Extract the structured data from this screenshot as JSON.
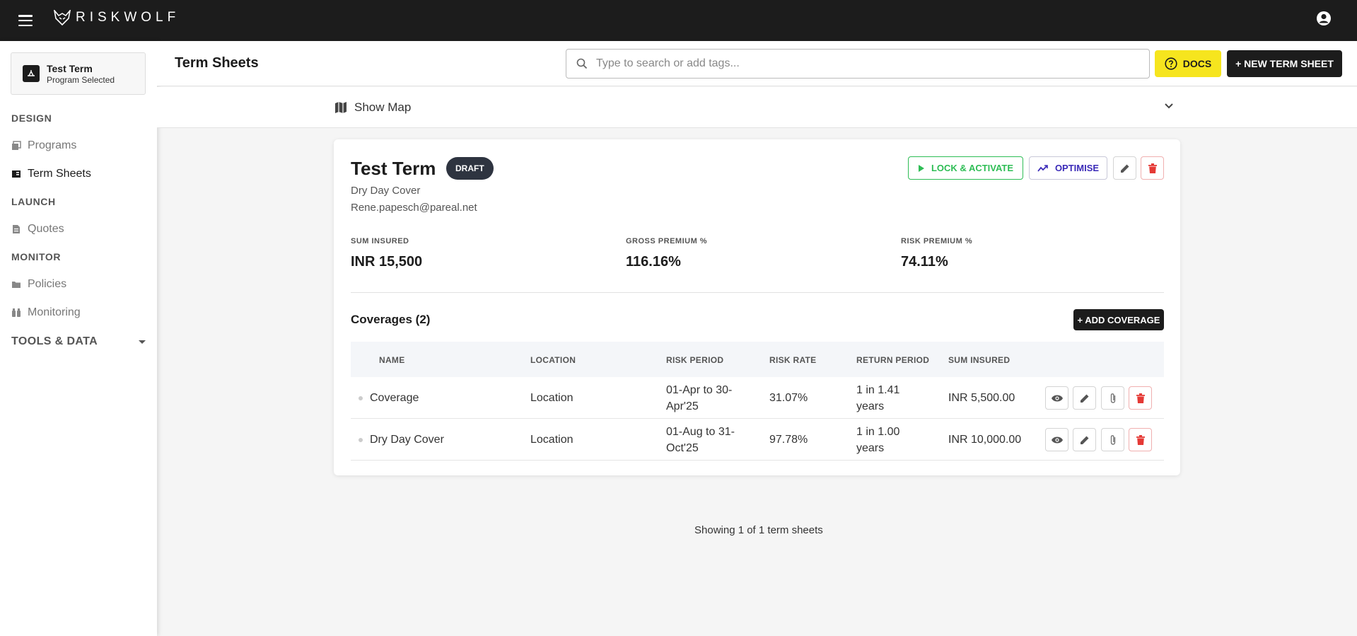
{
  "app": {
    "brand": "RISKWOLF"
  },
  "sidebar": {
    "program": {
      "title": "Test Term",
      "subtitle": "Program Selected"
    },
    "sections": [
      {
        "label": "DESIGN"
      },
      {
        "label": "LAUNCH"
      },
      {
        "label": "MONITOR"
      }
    ],
    "items": [
      {
        "label": "Programs",
        "icon": "programs-icon"
      },
      {
        "label": "Term Sheets",
        "icon": "term-sheets-icon",
        "active": true
      },
      {
        "label": "Quotes",
        "icon": "document-icon"
      },
      {
        "label": "Policies",
        "icon": "folder-icon"
      },
      {
        "label": "Monitoring",
        "icon": "binoculars-icon"
      }
    ],
    "tools": "TOOLS & DATA"
  },
  "header": {
    "title": "Term Sheets",
    "search_placeholder": "Type to search or add tags...",
    "docs_label": "DOCS",
    "new_label": "+ NEW TERM SHEET"
  },
  "map": {
    "label": "Show Map"
  },
  "term_sheet": {
    "title": "Test Term",
    "status": "DRAFT",
    "subtitle": "Dry Day Cover",
    "email": "Rene.papesch@pareal.net",
    "lock_label": "LOCK & ACTIVATE",
    "optimise_label": "OPTIMISE",
    "stats": [
      {
        "label": "SUM INSURED",
        "value": "INR 15,500"
      },
      {
        "label": "GROSS PREMIUM %",
        "value": "116.16%"
      },
      {
        "label": "RISK PREMIUM %",
        "value": "74.11%"
      }
    ],
    "coverages_title": "Coverages (2)",
    "add_coverage_label": "+ ADD COVERAGE",
    "columns": [
      "NAME",
      "LOCATION",
      "RISK PERIOD",
      "RISK RATE",
      "RETURN PERIOD",
      "SUM INSURED"
    ],
    "rows": [
      {
        "name": "Coverage",
        "location": "Location",
        "risk_period_1": "01-Apr to 30-",
        "risk_period_2": "Apr'25",
        "risk_rate": "31.07%",
        "return_period_1": "1 in 1.41",
        "return_period_2": "years",
        "sum_insured": "INR 5,500.00"
      },
      {
        "name": "Dry Day Cover",
        "location": "Location",
        "risk_period_1": "01-Aug to 31-",
        "risk_period_2": "Oct'25",
        "risk_rate": "97.78%",
        "return_period_1": "1 in 1.00",
        "return_period_2": "years",
        "sum_insured": "INR 10,000.00"
      }
    ]
  },
  "footer": {
    "text": "Showing 1 of 1 term sheets"
  },
  "colors": {
    "topbar": "#1c1c1c",
    "docs": "#f6e51e",
    "lock": "#2ebd55",
    "optimise": "#3b2bb8",
    "delete": "#e53935"
  }
}
